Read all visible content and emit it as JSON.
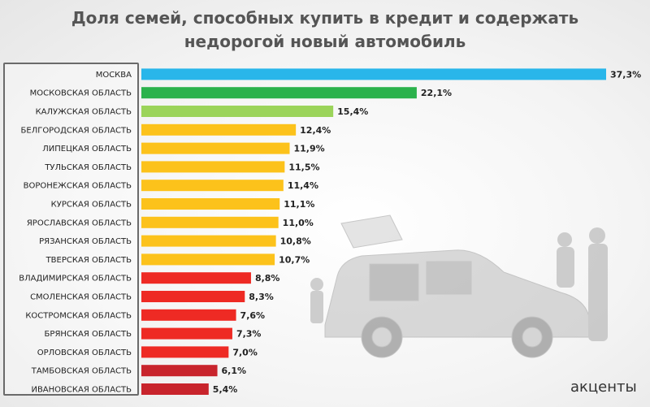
{
  "title": {
    "line1": "Доля семей, способных купить в кредит и содержать",
    "line2": "недорогой новый автомобиль"
  },
  "logo": {
    "text": "акценты"
  },
  "colors": {
    "blue": "#29b6ea",
    "green": "#2bb24c",
    "light_green": "#9bd45a",
    "yellow": "#fcc21b",
    "red": "#ee2a24",
    "dark_red": "#c8242c"
  },
  "chart_data": {
    "type": "bar",
    "orientation": "horizontal",
    "categories": [
      "МОСКВА",
      "МОСКОВСКАЯ ОБЛАСТЬ",
      "КАЛУЖСКАЯ ОБЛАСТЬ",
      "БЕЛГОРОДСКАЯ ОБЛАСТЬ",
      "ЛИПЕЦКАЯ ОБЛАСТЬ",
      "ТУЛЬСКАЯ ОБЛАСТЬ",
      "ВОРОНЕЖСКАЯ ОБЛАСТЬ",
      "КУРСКАЯ ОБЛАСТЬ",
      "ЯРОСЛАВСКАЯ ОБЛАСТЬ",
      "РЯЗАНСКАЯ ОБЛАСТЬ",
      "ТВЕРСКАЯ ОБЛАСТЬ",
      "ВЛАДИМИРСКАЯ ОБЛАСТЬ",
      "СМОЛЕНСКАЯ ОБЛАСТЬ",
      "КОСТРОМСКАЯ ОБЛАСТЬ",
      "БРЯНСКАЯ ОБЛАСТЬ",
      "ОРЛОВСКАЯ ОБЛАСТЬ",
      "ТАМБОВСКАЯ ОБЛАСТЬ",
      "ИВАНОВСКАЯ ОБЛАСТЬ"
    ],
    "values": [
      37.3,
      22.1,
      15.4,
      12.4,
      11.9,
      11.5,
      11.4,
      11.1,
      11.0,
      10.8,
      10.7,
      8.8,
      8.3,
      7.6,
      7.3,
      7.0,
      6.1,
      5.4
    ],
    "value_labels": [
      "37,3%",
      "22,1%",
      "15,4%",
      "12,4%",
      "11,9%",
      "11,5%",
      "11,4%",
      "11,1%",
      "11,0%",
      "10,8%",
      "10,7%",
      "8,8%",
      "8,3%",
      "7,6%",
      "7,3%",
      "7,0%",
      "6,1%",
      "5,4%"
    ],
    "bar_colors": [
      "#29b6ea",
      "#2bb24c",
      "#9bd45a",
      "#fcc21b",
      "#fcc21b",
      "#fcc21b",
      "#fcc21b",
      "#fcc21b",
      "#fcc21b",
      "#fcc21b",
      "#fcc21b",
      "#ee2a24",
      "#ee2a24",
      "#ee2a24",
      "#ee2a24",
      "#ee2a24",
      "#c8242c",
      "#c8242c"
    ],
    "unit": "%",
    "xlim": [
      0,
      37.3
    ],
    "grid": false,
    "legend": "none"
  }
}
